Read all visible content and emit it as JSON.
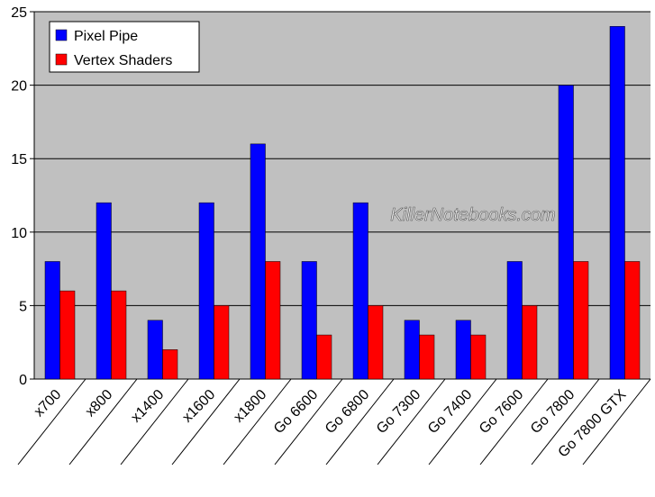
{
  "chart_data": {
    "type": "bar",
    "categories": [
      "x700",
      "x800",
      "x1400",
      "x1600",
      "x1800",
      "Go 6600",
      "Go 6800",
      "Go 7300",
      "Go 7400",
      "Go 7600",
      "Go 7800",
      "Go 7800 GTX"
    ],
    "series": [
      {
        "name": "Pixel Pipe",
        "color": "#0000ff",
        "values": [
          8,
          12,
          4,
          12,
          16,
          8,
          12,
          4,
          4,
          8,
          20,
          24
        ]
      },
      {
        "name": "Vertex Shaders",
        "color": "#ff0000",
        "values": [
          6,
          6,
          2,
          5,
          8,
          3,
          5,
          3,
          3,
          5,
          8,
          8
        ]
      }
    ],
    "ylim": [
      0,
      25
    ],
    "yticks": [
      0,
      5,
      10,
      15,
      20,
      25
    ],
    "grid": true,
    "legend": "top-left",
    "watermark": "KillerNotebooks.com"
  }
}
